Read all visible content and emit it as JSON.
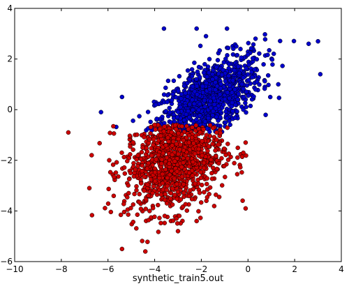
{
  "chart_data": {
    "type": "scatter",
    "title": "",
    "xlabel": "synthetic_train5.out",
    "ylabel": "",
    "xlim": [
      -10,
      4
    ],
    "ylim": [
      -6,
      4
    ],
    "xticks": [
      -10,
      -8,
      -6,
      -4,
      -2,
      0,
      2,
      4
    ],
    "yticks": [
      -6,
      -4,
      -2,
      0,
      2,
      4
    ],
    "xtick_labels": [
      "−10",
      "−8",
      "−6",
      "−4",
      "−2",
      "0",
      "2",
      "4"
    ],
    "ytick_labels": [
      "−6",
      "−4",
      "−2",
      "0",
      "2",
      "4"
    ],
    "grid": false,
    "legend": "none",
    "approximate_point_count_per_series": 1000,
    "series": [
      {
        "color": "#0000cc",
        "distribution": "correlated gaussian cluster, approx",
        "center": [
          -1.7,
          0.4
        ],
        "sample_points": [
          [
            -3.6,
            3.2
          ],
          [
            -2.2,
            3.2
          ],
          [
            -0.9,
            3.2
          ],
          [
            -1.8,
            2.9
          ],
          [
            2.6,
            2.6
          ],
          [
            3.0,
            2.7
          ],
          [
            3.1,
            1.4
          ],
          [
            -6.3,
            -0.1
          ],
          [
            -5.4,
            0.5
          ],
          [
            1.3,
            1.0
          ],
          [
            -0.2,
            0.0
          ],
          [
            -2.5,
            1.2
          ],
          [
            -1.2,
            0.6
          ]
        ],
        "y_min": -0.9,
        "y_max": 3.3
      },
      {
        "color": "#cc0000",
        "distribution": "gaussian cluster, approx",
        "center": [
          -3.2,
          -2.0
        ],
        "sample_points": [
          [
            -7.7,
            -0.9
          ],
          [
            -6.7,
            -1.8
          ],
          [
            -6.8,
            -3.1
          ],
          [
            -5.4,
            -5.5
          ],
          [
            -4.4,
            -5.6
          ],
          [
            -3.0,
            -4.8
          ],
          [
            -0.1,
            -1.3
          ],
          [
            -0.1,
            -3.9
          ],
          [
            -2.2,
            -4.4
          ],
          [
            -4.0,
            -0.6
          ],
          [
            -2.4,
            -1.1
          ],
          [
            -3.8,
            -2.7
          ]
        ],
        "y_min": -5.7,
        "y_max": -0.6
      }
    ]
  }
}
